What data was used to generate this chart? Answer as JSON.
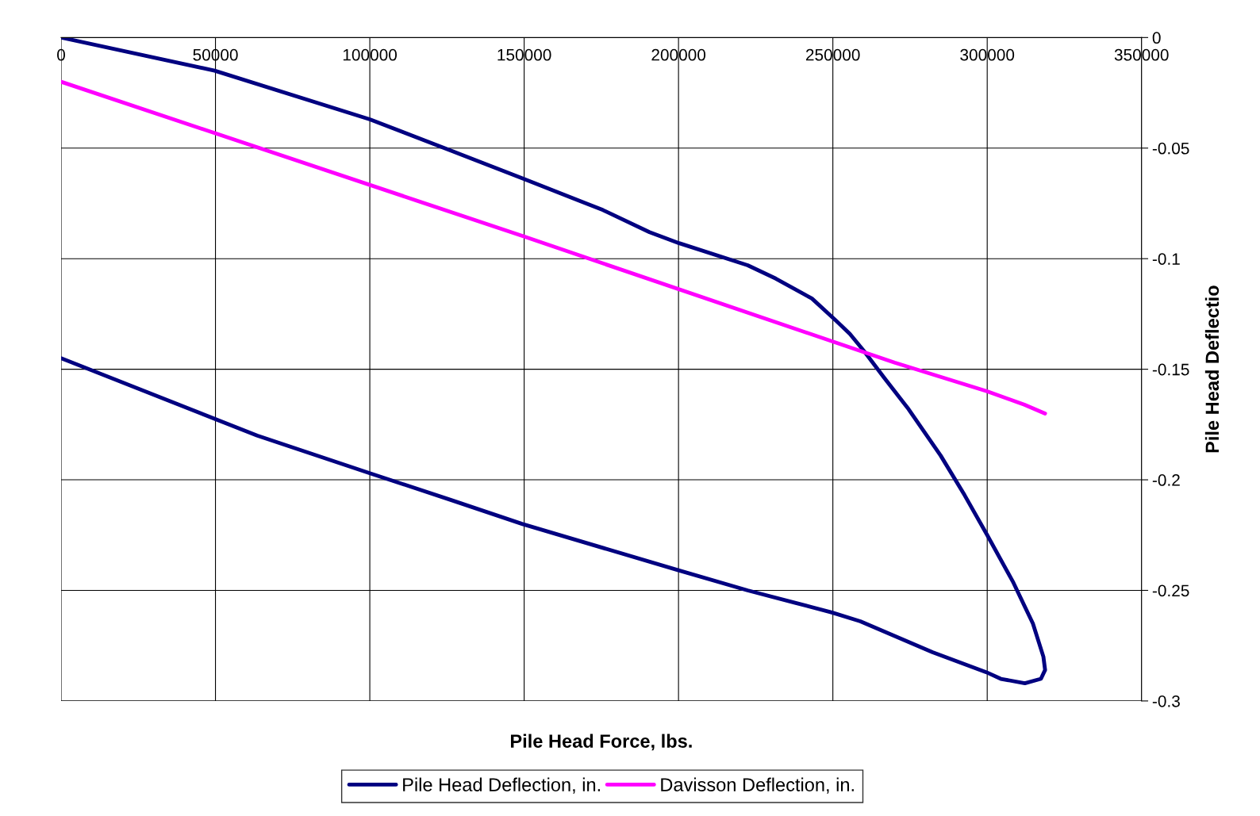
{
  "chart_data": {
    "type": "line",
    "xlabel": "Pile Head Force, lbs.",
    "ylabel": "Pile Head Deflectio",
    "xlim": [
      0,
      350000
    ],
    "xticks": [
      0,
      50000,
      100000,
      150000,
      200000,
      250000,
      300000,
      350000
    ],
    "ylim": [
      -0.3,
      0
    ],
    "yticks": [
      0,
      -0.05,
      -0.1,
      -0.15,
      -0.2,
      -0.25,
      -0.3
    ],
    "grid": true,
    "legend": "bottom",
    "marker": "none",
    "line_style": "solid",
    "series": [
      {
        "name": "Pile Head Deflection, in.",
        "color": "#000080",
        "x": [
          0,
          49740,
          100000,
          126000,
          150000,
          175500,
          190600,
          200200,
          222400,
          231500,
          243200,
          251000,
          255500,
          260200,
          266700,
          274500,
          284900,
          292700,
          300000,
          308300,
          314800,
          318200,
          318750,
          317400,
          312200,
          304400,
          299700,
          282300,
          258900,
          249700,
          222400,
          200200,
          149500,
          126000,
          100000,
          63500,
          0
        ],
        "values": [
          0,
          -0.015,
          -0.037,
          -0.051,
          -0.064,
          -0.078,
          -0.088,
          -0.093,
          -0.103,
          -0.109,
          -0.118,
          -0.128,
          -0.134,
          -0.142,
          -0.154,
          -0.168,
          -0.189,
          -0.207,
          -0.225,
          -0.246,
          -0.265,
          -0.28,
          -0.286,
          -0.29,
          -0.292,
          -0.29,
          -0.287,
          -0.278,
          -0.264,
          -0.26,
          -0.25,
          -0.241,
          -0.22,
          -0.209,
          -0.197,
          -0.18,
          -0.145
        ]
      },
      {
        "name": "Davisson Deflection, in.",
        "color": "#ff00ff",
        "x": [
          0,
          150000,
          270000,
          300000,
          312000,
          318750
        ],
        "values": [
          -0.02,
          -0.09,
          -0.147,
          -0.16,
          -0.166,
          -0.17
        ]
      }
    ]
  }
}
